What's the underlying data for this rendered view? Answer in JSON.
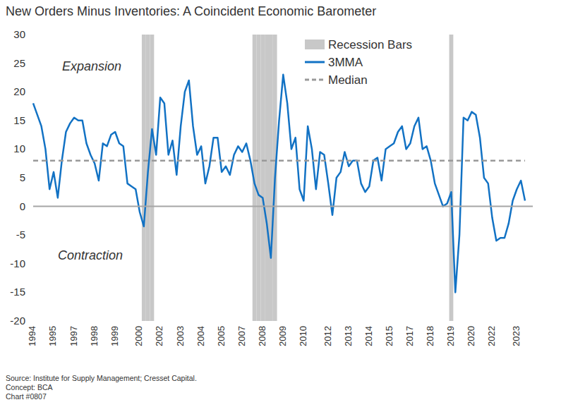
{
  "chart_data": {
    "type": "line",
    "title": "New Orders Minus Inventories: A Coincident Economic Barometer",
    "categories": [
      "1994",
      null,
      null,
      null,
      null,
      "1995",
      null,
      null,
      null,
      null,
      "1997",
      null,
      null,
      null,
      null,
      "1998",
      null,
      null,
      null,
      null,
      "1999",
      null,
      null,
      null,
      null,
      null,
      "2000",
      null,
      null,
      null,
      null,
      "2002",
      null,
      null,
      null,
      null,
      "2003",
      null,
      null,
      null,
      null,
      "2004",
      null,
      null,
      null,
      null,
      "2005",
      null,
      null,
      null,
      null,
      "2007",
      null,
      null,
      null,
      null,
      "2008",
      null,
      null,
      null,
      null,
      "2009",
      null,
      null,
      null,
      null,
      "2010",
      null,
      null,
      null,
      null,
      null,
      "2012",
      null,
      null,
      null,
      null,
      "2013",
      null,
      null,
      null,
      null,
      "2014",
      null,
      null,
      null,
      null,
      "2015",
      null,
      null,
      null,
      null,
      "2017",
      null,
      null,
      null,
      null,
      "2018",
      null,
      null,
      null,
      null,
      "2019",
      null,
      null,
      null,
      null,
      "2020",
      null,
      null,
      null,
      null,
      "2022",
      null,
      null,
      null,
      null,
      null,
      "2023",
      null,
      null
    ],
    "series": [
      {
        "name": "Recession Bars",
        "type": "bar",
        "color": "#c8c8c8",
        "values": [
          null,
          null,
          null,
          null,
          null,
          null,
          null,
          null,
          null,
          null,
          null,
          null,
          null,
          null,
          null,
          null,
          null,
          null,
          null,
          null,
          null,
          null,
          null,
          null,
          null,
          null,
          null,
          30,
          30,
          30,
          null,
          null,
          null,
          null,
          null,
          null,
          null,
          null,
          null,
          null,
          null,
          null,
          null,
          null,
          null,
          null,
          null,
          null,
          null,
          null,
          null,
          null,
          null,
          null,
          30,
          30,
          30,
          30,
          30,
          30,
          null,
          null,
          null,
          null,
          null,
          null,
          null,
          null,
          null,
          null,
          null,
          null,
          null,
          null,
          null,
          null,
          null,
          null,
          null,
          null,
          null,
          null,
          null,
          null,
          null,
          null,
          null,
          null,
          null,
          null,
          null,
          null,
          null,
          null,
          null,
          null,
          null,
          null,
          null,
          null,
          null,
          null,
          30,
          null,
          null,
          null,
          null,
          null,
          null,
          null,
          null,
          null,
          null,
          null,
          null,
          null,
          null,
          null,
          null,
          null,
          null
        ]
      },
      {
        "name": "3MMA",
        "type": "line",
        "color": "#1272c4",
        "line_style": "solid",
        "values": [
          18,
          16,
          14,
          10,
          3,
          6,
          1.5,
          8,
          13,
          14.5,
          15.5,
          15,
          15,
          11,
          9,
          7.5,
          4.5,
          11,
          10.5,
          12.5,
          13,
          11,
          10.5,
          4,
          3.5,
          3,
          -1,
          -3.5,
          6,
          13.5,
          9,
          19,
          18,
          9,
          11.5,
          5.5,
          14,
          20,
          22,
          14,
          9,
          10.5,
          4,
          7,
          12,
          12,
          6,
          7,
          5.5,
          9,
          10.5,
          9.5,
          11,
          8,
          4,
          2,
          1.5,
          -3,
          -9,
          5,
          15,
          23,
          18,
          10,
          12,
          3,
          1,
          14,
          10,
          3,
          9.5,
          9,
          4,
          -1.5,
          5,
          6,
          9.5,
          7,
          8,
          8,
          4,
          2.5,
          3.5,
          8,
          8.5,
          4.5,
          10,
          10.5,
          11,
          13,
          14,
          10,
          11,
          14,
          15.5,
          10,
          10.5,
          8,
          4,
          2,
          0,
          0.5,
          2.5,
          -15,
          -5,
          15.5,
          15,
          16.5,
          16,
          12,
          5,
          4,
          -2,
          -6,
          -5.5,
          -5.5,
          -3,
          1,
          3,
          4.5,
          1
        ]
      },
      {
        "name": "Median",
        "type": "line",
        "color": "#999999",
        "line_style": "dashed",
        "values": [
          8,
          8,
          8,
          8,
          8,
          8,
          8,
          8,
          8,
          8,
          8,
          8,
          8,
          8,
          8,
          8,
          8,
          8,
          8,
          8,
          8,
          8,
          8,
          8,
          8,
          8,
          8,
          8,
          8,
          8,
          8,
          8,
          8,
          8,
          8,
          8,
          8,
          8,
          8,
          8,
          8,
          8,
          8,
          8,
          8,
          8,
          8,
          8,
          8,
          8,
          8,
          8,
          8,
          8,
          8,
          8,
          8,
          8,
          8,
          8,
          8,
          8,
          8,
          8,
          8,
          8,
          8,
          8,
          8,
          8,
          8,
          8,
          8,
          8,
          8,
          8,
          8,
          8,
          8,
          8,
          8,
          8,
          8,
          8,
          8,
          8,
          8,
          8,
          8,
          8,
          8,
          8,
          8,
          8,
          8,
          8,
          8,
          8,
          8,
          8,
          8,
          8,
          8,
          8,
          8,
          8,
          8,
          8,
          8,
          8,
          8,
          8,
          8,
          8,
          8,
          8,
          8,
          8,
          8,
          8,
          8
        ]
      }
    ],
    "ylim": [
      -20,
      30
    ],
    "yticks": [
      -20,
      -15,
      -10,
      -5,
      0,
      5,
      10,
      15,
      20,
      25,
      30
    ],
    "grid": false,
    "legend": "top-right",
    "annotations": [
      "Expansion",
      "Contraction"
    ],
    "source": [
      "Source: Institute for Supply Management; Cresset Capital.",
      "Concept: BCA",
      "Chart #0807"
    ]
  }
}
